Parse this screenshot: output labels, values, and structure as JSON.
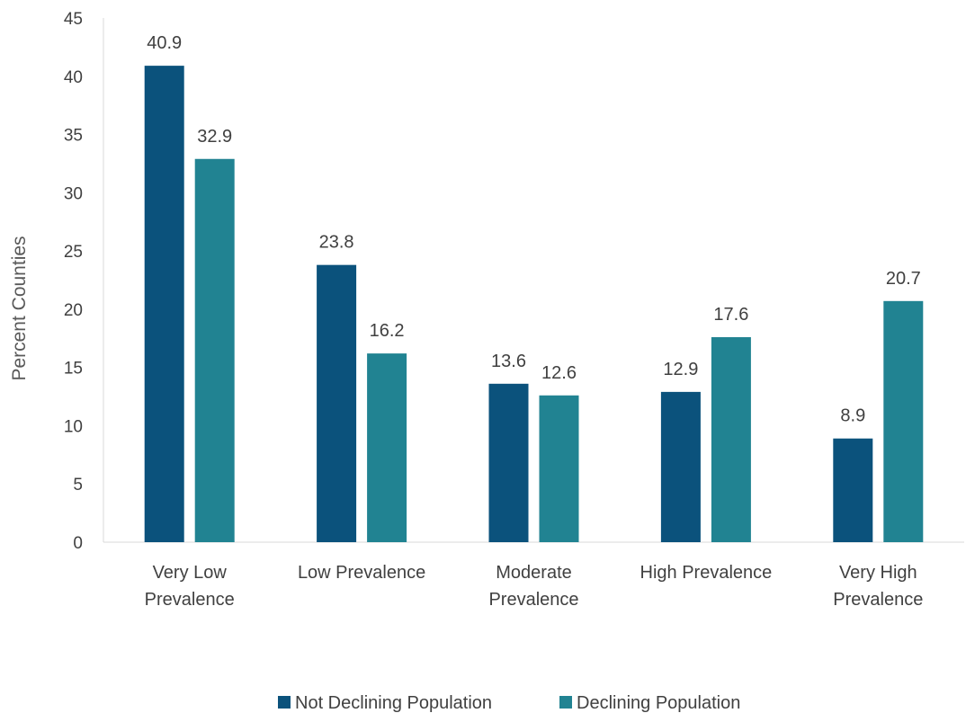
{
  "chart_data": {
    "type": "bar",
    "categories": [
      [
        "Very Low",
        "Prevalence"
      ],
      [
        "Low Prevalence"
      ],
      [
        "Moderate",
        "Prevalence"
      ],
      [
        "High Prevalence"
      ],
      [
        "Very High",
        "Prevalence"
      ]
    ],
    "series": [
      {
        "name": "Not Declining Population",
        "color": "#0b527c",
        "values": [
          40.9,
          23.8,
          13.6,
          12.9,
          8.9
        ]
      },
      {
        "name": "Declining Population",
        "color": "#218392",
        "values": [
          32.9,
          16.2,
          12.6,
          17.6,
          20.7
        ]
      }
    ],
    "xlabel": "",
    "ylabel": "Percent  Counties",
    "ylim": [
      0,
      45
    ],
    "yticks": [
      0,
      5,
      10,
      15,
      20,
      25,
      30,
      35,
      40,
      45
    ],
    "grid": false,
    "legend_position": "bottom"
  }
}
